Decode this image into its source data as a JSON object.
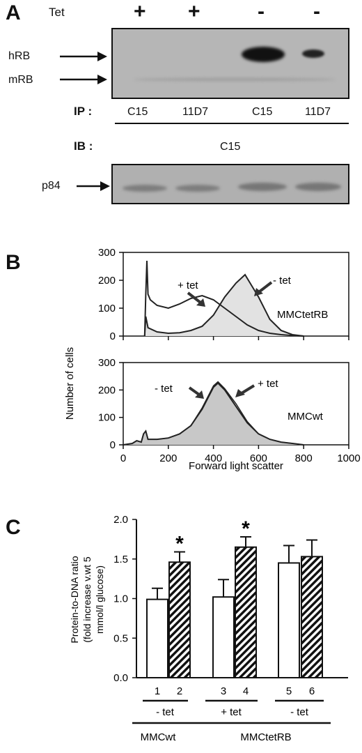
{
  "panel_a": {
    "letter": "A",
    "tet_label": "Tet",
    "tet_signs": [
      "+",
      "+",
      "-",
      "-"
    ],
    "hrb_label": "hRB",
    "mrb_label": "mRB",
    "ip_label": "IP :",
    "ip_antibodies": [
      "C15",
      "11D7",
      "C15",
      "11D7"
    ],
    "ib_label": "IB :",
    "ib_antibody": "C15",
    "p84_label": "p84"
  },
  "panel_b": {
    "letter": "B",
    "ylabel": "Number of cells",
    "xlabel": "Forward light scatter",
    "top": {
      "cell_line": "MMCtetRB",
      "annot_plus": "+ tet",
      "annot_minus": "- tet",
      "yticks": [
        "300",
        "200",
        "100",
        "0"
      ]
    },
    "bottom": {
      "cell_line": "MMCwt",
      "annot_minus": "- tet",
      "annot_plus": "+ tet",
      "yticks": [
        "300",
        "200",
        "100",
        "0"
      ]
    },
    "xticks": [
      "0",
      "200",
      "400",
      "600",
      "800",
      "1000"
    ]
  },
  "panel_c": {
    "letter": "C",
    "ylabel_lines": [
      "Protein-to-DNA ratio",
      "(fold increase v.wt 5",
      "mmol/l glucose)"
    ],
    "bar_numbers": [
      "1",
      "2",
      "3",
      "4",
      "5",
      "6"
    ],
    "group_labels": [
      "- tet",
      "+ tet",
      "- tet"
    ],
    "cell_labels": [
      "MMCwt",
      "MMCtetRB"
    ],
    "yticks": [
      "2.0",
      "1.5",
      "1.0",
      "0.5",
      "0.0"
    ],
    "significance_marker": "*"
  },
  "chart_data": [
    {
      "type": "line",
      "title": "MMCtetRB",
      "xlabel": "Forward light scatter",
      "ylabel": "Number of cells",
      "xlim": [
        0,
        1000
      ],
      "ylim": [
        0,
        300
      ],
      "series": [
        {
          "name": "+ tet",
          "x": [
            95,
            100,
            105,
            110,
            120,
            150,
            200,
            250,
            300,
            350,
            400,
            450,
            500,
            550,
            600,
            650,
            700,
            750,
            800
          ],
          "y": [
            0,
            150,
            270,
            150,
            130,
            110,
            100,
            115,
            135,
            145,
            130,
            100,
            70,
            40,
            20,
            10,
            5,
            2,
            0
          ]
        },
        {
          "name": "- tet",
          "x": [
            95,
            100,
            110,
            150,
            200,
            250,
            300,
            350,
            400,
            450,
            500,
            540,
            570,
            600,
            650,
            700,
            750,
            800
          ],
          "y": [
            0,
            70,
            30,
            15,
            10,
            12,
            20,
            35,
            75,
            140,
            190,
            220,
            180,
            140,
            60,
            20,
            5,
            0
          ]
        }
      ]
    },
    {
      "type": "line",
      "title": "MMCwt",
      "xlabel": "Forward light scatter",
      "ylabel": "Number of cells",
      "xlim": [
        0,
        1000
      ],
      "ylim": [
        0,
        300
      ],
      "series": [
        {
          "name": "- tet",
          "x": [
            0,
            40,
            60,
            80,
            90,
            100,
            110,
            150,
            200,
            250,
            300,
            350,
            400,
            420,
            450,
            500,
            550,
            600,
            650,
            700,
            750,
            800
          ],
          "y": [
            0,
            5,
            15,
            10,
            40,
            50,
            20,
            20,
            25,
            40,
            70,
            130,
            210,
            225,
            200,
            140,
            80,
            40,
            20,
            10,
            5,
            0
          ]
        },
        {
          "name": "+ tet",
          "x": [
            0,
            40,
            60,
            80,
            90,
            100,
            110,
            150,
            200,
            250,
            300,
            350,
            400,
            420,
            450,
            500,
            550,
            600,
            650,
            700,
            750,
            800
          ],
          "y": [
            0,
            5,
            15,
            10,
            40,
            50,
            20,
            20,
            25,
            40,
            70,
            135,
            215,
            230,
            205,
            150,
            85,
            40,
            20,
            10,
            5,
            0
          ]
        }
      ]
    },
    {
      "type": "bar",
      "xlabel": "",
      "ylabel": "Protein-to-DNA ratio (fold increase v.wt 5 mmol/l glucose)",
      "ylim": [
        0,
        2.0
      ],
      "categories": [
        "1",
        "2",
        "3",
        "4",
        "5",
        "6"
      ],
      "values": [
        0.99,
        1.46,
        1.02,
        1.65,
        1.45,
        1.53
      ],
      "errors": [
        0.14,
        0.13,
        0.22,
        0.13,
        0.22,
        0.21
      ],
      "hatched": [
        false,
        true,
        false,
        true,
        false,
        true
      ],
      "significant": [
        false,
        true,
        false,
        true,
        false,
        false
      ]
    }
  ]
}
